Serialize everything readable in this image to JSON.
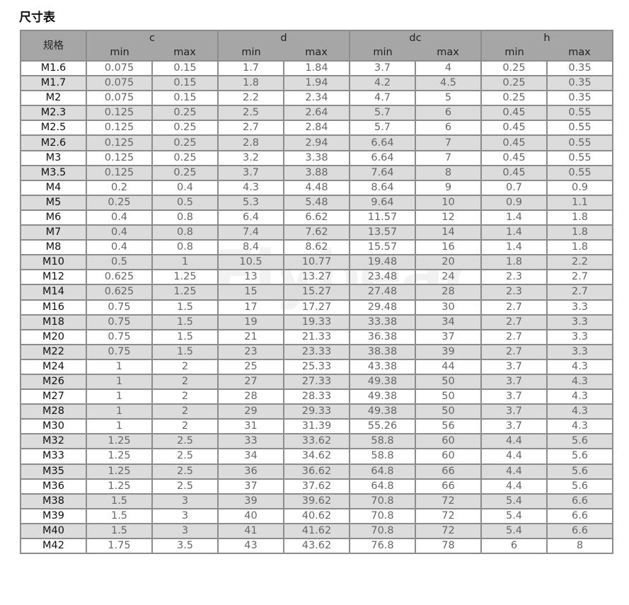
{
  "title": "尺寸表",
  "watermark": "Flybear",
  "header": {
    "spec": "规格",
    "groups": [
      "c",
      "d",
      "dc",
      "h"
    ],
    "min": "min",
    "max": "max"
  },
  "rows": [
    [
      "M1.6",
      "0.075",
      "0.15",
      "1.7",
      "1.84",
      "3.7",
      "4",
      "0.25",
      "0.35"
    ],
    [
      "M1.7",
      "0.075",
      "0.15",
      "1.8",
      "1.94",
      "4.2",
      "4.5",
      "0.25",
      "0.35"
    ],
    [
      "M2",
      "0.075",
      "0.15",
      "2.2",
      "2.34",
      "4.7",
      "5",
      "0.25",
      "0.35"
    ],
    [
      "M2.3",
      "0.125",
      "0.25",
      "2.5",
      "2.64",
      "5.7",
      "6",
      "0.45",
      "0.55"
    ],
    [
      "M2.5",
      "0.125",
      "0.25",
      "2.7",
      "2.84",
      "5.7",
      "6",
      "0.45",
      "0.55"
    ],
    [
      "M2.6",
      "0.125",
      "0.25",
      "2.8",
      "2.94",
      "6.64",
      "7",
      "0.45",
      "0.55"
    ],
    [
      "M3",
      "0.125",
      "0.25",
      "3.2",
      "3.38",
      "6.64",
      "7",
      "0.45",
      "0.55"
    ],
    [
      "M3.5",
      "0.125",
      "0.25",
      "3.7",
      "3.88",
      "7.64",
      "8",
      "0.45",
      "0.55"
    ],
    [
      "M4",
      "0.2",
      "0.4",
      "4.3",
      "4.48",
      "8.64",
      "9",
      "0.7",
      "0.9"
    ],
    [
      "M5",
      "0.25",
      "0.5",
      "5.3",
      "5.48",
      "9.64",
      "10",
      "0.9",
      "1.1"
    ],
    [
      "M6",
      "0.4",
      "0.8",
      "6.4",
      "6.62",
      "11.57",
      "12",
      "1.4",
      "1.8"
    ],
    [
      "M7",
      "0.4",
      "0.8",
      "7.4",
      "7.62",
      "13.57",
      "14",
      "1.4",
      "1.8"
    ],
    [
      "M8",
      "0.4",
      "0.8",
      "8.4",
      "8.62",
      "15.57",
      "16",
      "1.4",
      "1.8"
    ],
    [
      "M10",
      "0.5",
      "1",
      "10.5",
      "10.77",
      "19.48",
      "20",
      "1.8",
      "2.2"
    ],
    [
      "M12",
      "0.625",
      "1.25",
      "13",
      "13.27",
      "23.48",
      "24",
      "2.3",
      "2.7"
    ],
    [
      "M14",
      "0.625",
      "1.25",
      "15",
      "15.27",
      "27.48",
      "28",
      "2.3",
      "2.7"
    ],
    [
      "M16",
      "0.75",
      "1.5",
      "17",
      "17.27",
      "29.48",
      "30",
      "2.7",
      "3.3"
    ],
    [
      "M18",
      "0.75",
      "1.5",
      "19",
      "19.33",
      "33.38",
      "34",
      "2.7",
      "3.3"
    ],
    [
      "M20",
      "0.75",
      "1.5",
      "21",
      "21.33",
      "36.38",
      "37",
      "2.7",
      "3.3"
    ],
    [
      "M22",
      "0.75",
      "1.5",
      "23",
      "23.33",
      "38.38",
      "39",
      "2.7",
      "3.3"
    ],
    [
      "M24",
      "1",
      "2",
      "25",
      "25.33",
      "43.38",
      "44",
      "3.7",
      "4.3"
    ],
    [
      "M26",
      "1",
      "2",
      "27",
      "27.33",
      "49.38",
      "50",
      "3.7",
      "4.3"
    ],
    [
      "M27",
      "1",
      "2",
      "28",
      "28.33",
      "49.38",
      "50",
      "3.7",
      "4.3"
    ],
    [
      "M28",
      "1",
      "2",
      "29",
      "29.33",
      "49.38",
      "50",
      "3.7",
      "4.3"
    ],
    [
      "M30",
      "1",
      "2",
      "31",
      "31.39",
      "55.26",
      "56",
      "3.7",
      "4.3"
    ],
    [
      "M32",
      "1.25",
      "2.5",
      "33",
      "33.62",
      "58.8",
      "60",
      "4.4",
      "5.6"
    ],
    [
      "M33",
      "1.25",
      "2.5",
      "34",
      "34.62",
      "58.8",
      "60",
      "4.4",
      "5.6"
    ],
    [
      "M35",
      "1.25",
      "2.5",
      "36",
      "36.62",
      "64.8",
      "66",
      "4.4",
      "5.6"
    ],
    [
      "M36",
      "1.25",
      "2.5",
      "37",
      "37.62",
      "64.8",
      "66",
      "4.4",
      "5.6"
    ],
    [
      "M38",
      "1.5",
      "3",
      "39",
      "39.62",
      "70.8",
      "72",
      "5.4",
      "6.6"
    ],
    [
      "M39",
      "1.5",
      "3",
      "40",
      "40.62",
      "70.8",
      "72",
      "5.4",
      "6.6"
    ],
    [
      "M40",
      "1.5",
      "3",
      "41",
      "41.62",
      "70.8",
      "72",
      "5.4",
      "6.6"
    ],
    [
      "M42",
      "1.75",
      "3.5",
      "43",
      "43.62",
      "76.8",
      "78",
      "6",
      "8"
    ]
  ]
}
